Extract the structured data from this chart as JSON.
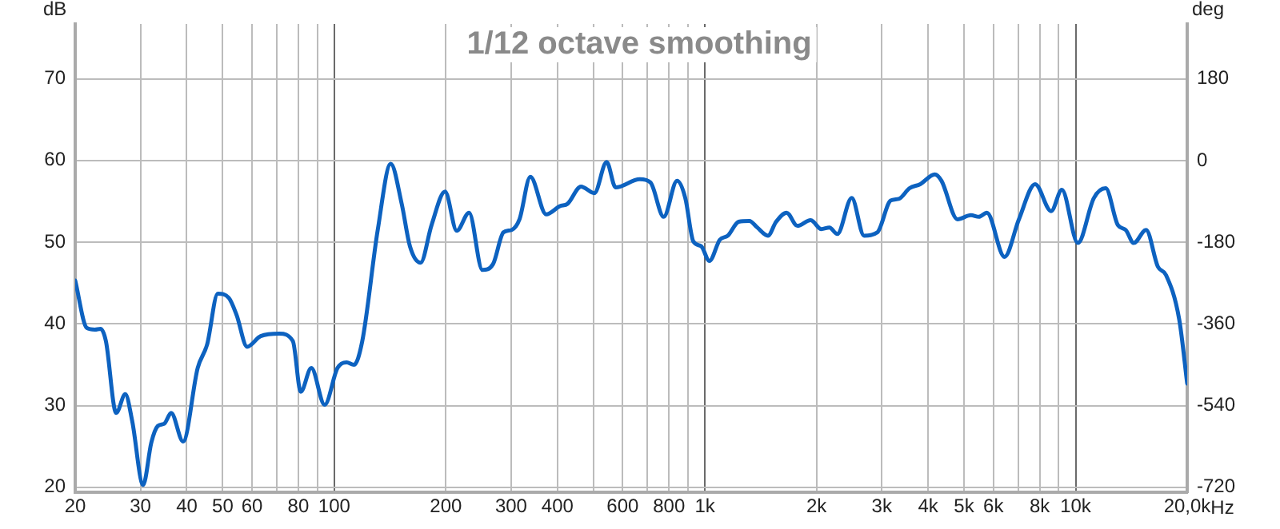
{
  "chart_data": {
    "type": "line",
    "title": "1/12 octave smoothing",
    "ylabel": "dB",
    "y2label": "deg",
    "x": [
      20,
      21.5,
      22.6,
      23.4,
      24.2,
      25.8,
      27.3,
      28.5,
      30.5,
      32.1,
      33.4,
      34.8,
      36.3,
      39.1,
      42.8,
      45.4,
      48.5,
      51.9,
      54.5,
      58.2,
      63.3,
      71.1,
      77.3,
      81.2,
      86.7,
      94.2,
      102,
      108,
      113,
      119,
      131,
      142,
      152,
      160,
      171,
      183,
      199,
      214,
      231,
      251,
      268,
      286,
      301,
      316,
      338,
      373,
      406,
      426,
      463,
      503,
      543,
      574,
      667,
      713,
      774,
      841,
      885,
      930,
      977,
      1028,
      1097,
      1153,
      1233,
      1318,
      1384,
      1479,
      1556,
      1661,
      1775,
      1928,
      2061,
      2166,
      2275,
      2489,
      2687,
      2918,
      3170,
      3334,
      3565,
      3809,
      4169,
      4348,
      4800,
      5219,
      5483,
      5763,
      6430,
      7031,
      7777,
      8590,
      9180,
      10140,
      11200,
      12050,
      13000,
      13650,
      14350,
      15490,
      16670,
      17520,
      19040,
      20000
    ],
    "series": [
      {
        "color": "#0d62c0",
        "values": [
          45.3,
          39.5,
          39.3,
          39.4,
          37.9,
          29.1,
          31.4,
          28.1,
          20.3,
          25.5,
          27.5,
          27.8,
          29.1,
          25.6,
          34.6,
          37.5,
          43.7,
          43.2,
          41.1,
          37.2,
          38.5,
          38.8,
          37.9,
          31.7,
          34.6,
          30.1,
          34.6,
          35.3,
          35.0,
          37.9,
          51.5,
          59.6,
          54.7,
          49.5,
          47.5,
          52.1,
          56.2,
          51.4,
          53.6,
          46.6,
          47.3,
          51.2,
          51.5,
          52.8,
          58.0,
          53.4,
          54.4,
          54.7,
          56.8,
          56.0,
          59.8,
          56.7,
          57.7,
          57.3,
          53.1,
          57.5,
          55.4,
          50.1,
          49.5,
          47.7,
          50.3,
          50.8,
          52.5,
          52.6,
          51.8,
          50.8,
          52.5,
          53.6,
          52.0,
          52.7,
          51.6,
          51.8,
          51.0,
          55.4,
          50.8,
          51.2,
          55.1,
          55.3,
          56.6,
          57.1,
          58.3,
          57.5,
          52.8,
          53.3,
          53.1,
          53.6,
          48.2,
          52.8,
          57.1,
          53.8,
          56.4,
          49.9,
          55.4,
          56.6,
          52.1,
          51.5,
          49.9,
          51.5,
          47.0,
          46.0,
          40.5,
          32.7
        ]
      }
    ],
    "xlim": [
      20,
      20000
    ],
    "log": "x",
    "xticks": [
      20,
      30,
      40,
      50,
      60,
      {
        "value": 70,
        "label": null
      },
      80,
      {
        "value": 90,
        "label": null
      },
      100,
      200,
      300,
      400,
      {
        "value": 500,
        "label": null
      },
      600,
      {
        "value": 700,
        "label": null
      },
      800,
      {
        "value": 900,
        "label": null
      },
      {
        "value": 1000,
        "label": "1k"
      },
      {
        "value": 2000,
        "label": "2k"
      },
      {
        "value": 3000,
        "label": "3k"
      },
      {
        "value": 4000,
        "label": "4k"
      },
      {
        "value": 5000,
        "label": "5k"
      },
      {
        "value": 6000,
        "label": "6k"
      },
      {
        "value": 7000,
        "label": null
      },
      {
        "value": 8000,
        "label": "8k"
      },
      {
        "value": 9000,
        "label": null
      },
      {
        "value": 10000,
        "label": "10k"
      },
      {
        "value": 20000,
        "label": "20,0k"
      }
    ],
    "xlabel": "Hz",
    "ylim": [
      19.4,
      76.7
    ],
    "yticks": [
      20,
      30,
      40,
      50,
      60,
      70
    ],
    "y2lim": [
      -731,
      301
    ],
    "y2ticks": [
      -720,
      -540,
      -360,
      -180,
      0,
      180
    ],
    "grid": true,
    "legend": false,
    "marker": "none",
    "line_style": "solid"
  }
}
